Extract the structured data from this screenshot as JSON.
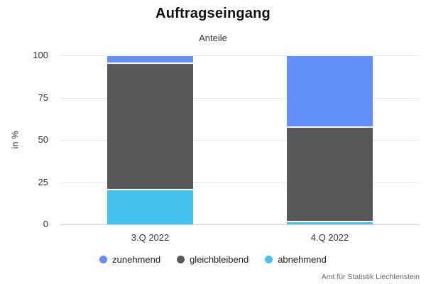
{
  "header": {
    "title": "Auftragseingang",
    "subtitle": "Anteile"
  },
  "footer": {
    "source": "Amt für Statistik Liechtenstein"
  },
  "chart_data": {
    "type": "bar",
    "stacked": true,
    "percent": true,
    "title": "Auftragseingang",
    "subtitle": "Anteile",
    "categories": [
      "3.Q 2022",
      "4.Q 2022"
    ],
    "series": [
      {
        "name": "zunehmend",
        "color": "#6290f8",
        "values": [
          4,
          42
        ]
      },
      {
        "name": "gleichbleibend",
        "color": "#58585a",
        "values": [
          75,
          56
        ]
      },
      {
        "name": "abnehmend",
        "color": "#45c3ee",
        "values": [
          21,
          2
        ]
      }
    ],
    "xlabel": "",
    "ylabel": "in %",
    "ylim": [
      0,
      100
    ],
    "yticks": [
      0,
      25,
      50,
      75,
      100
    ],
    "grid": true,
    "gridline_color": "#e6e6e6",
    "axis_line_color": "#ccd6eb",
    "legend_position": "bottom",
    "source": "Amt für Statistik Liechtenstein"
  }
}
